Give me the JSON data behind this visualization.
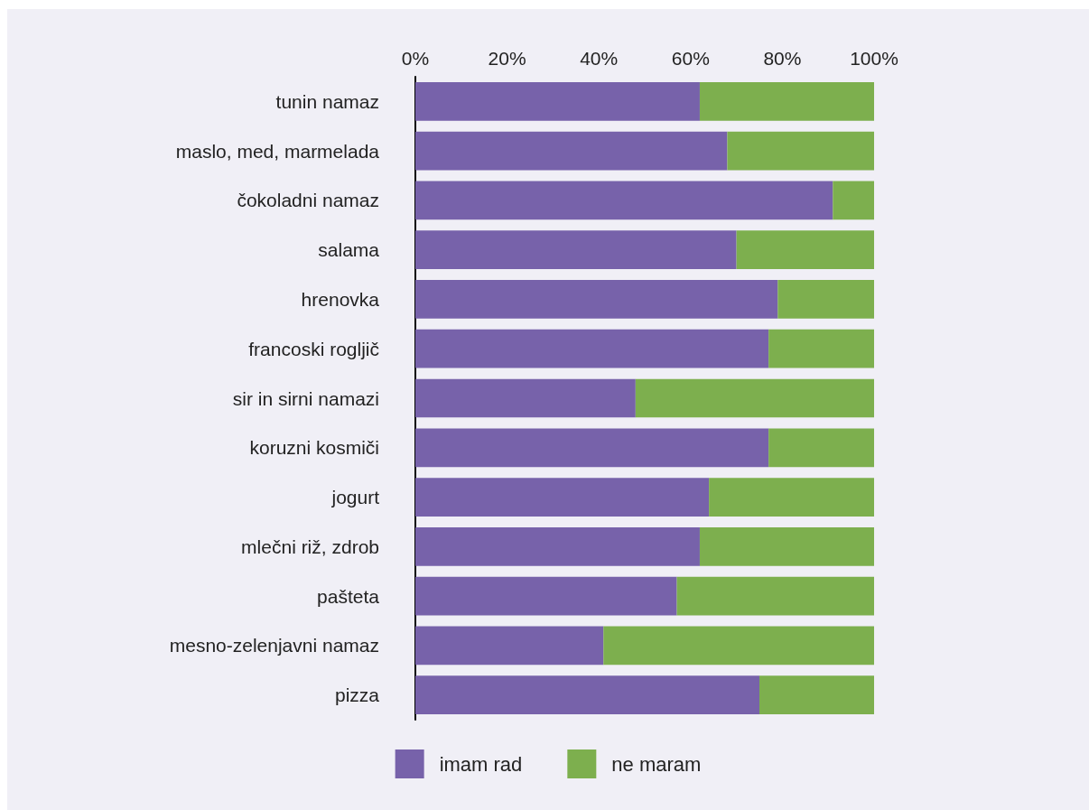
{
  "chart_data": {
    "type": "bar",
    "orientation": "horizontal",
    "stacked": true,
    "categories": [
      "tunin namaz",
      "maslo, med, marmelada",
      "čokoladni namaz",
      "salama",
      "hrenovka",
      "francoski rogljič",
      "sir in sirni namazi",
      "koruzni kosmiči",
      "jogurt",
      "mlečni riž, zdrob",
      "pašteta",
      "mesno-zelenjavni namaz",
      "pizza"
    ],
    "series": [
      {
        "name": "imam rad",
        "color": "#7762aa",
        "values": [
          62,
          68,
          91,
          70,
          79,
          77,
          48,
          77,
          64,
          62,
          57,
          41,
          75
        ]
      },
      {
        "name": "ne maram",
        "color": "#7daf4e",
        "values": [
          38,
          32,
          9,
          30,
          21,
          23,
          52,
          23,
          36,
          38,
          43,
          59,
          25
        ]
      }
    ],
    "xlim": [
      0,
      100
    ],
    "xticks": [
      {
        "value": 0,
        "label": "0%"
      },
      {
        "value": 20,
        "label": "20%"
      },
      {
        "value": 40,
        "label": "40%"
      },
      {
        "value": 60,
        "label": "60%"
      },
      {
        "value": 80,
        "label": "80%"
      },
      {
        "value": 100,
        "label": "100%"
      }
    ],
    "grid": false,
    "legend": "bottom"
  }
}
